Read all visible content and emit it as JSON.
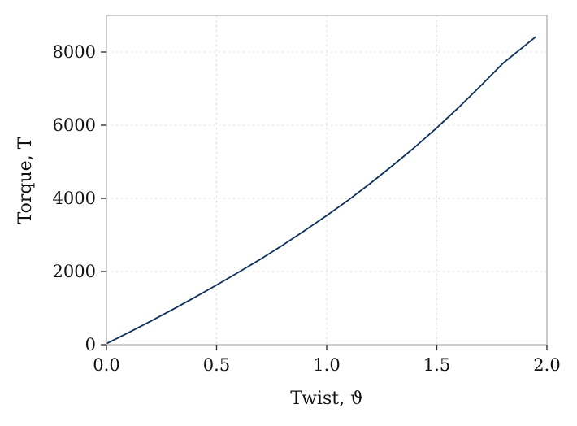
{
  "chart_data": {
    "type": "line",
    "title": "",
    "xlabel": "Twist, ϑ",
    "ylabel": "Torque, T",
    "xlim": [
      0,
      2.0
    ],
    "ylim": [
      0,
      9000
    ],
    "xticks": [
      0.0,
      0.5,
      1.0,
      1.5,
      2.0
    ],
    "xtick_labels": [
      "0.0",
      "0.5",
      "1.0",
      "1.5",
      "2.0"
    ],
    "yticks": [
      0,
      2000,
      4000,
      6000,
      8000
    ],
    "ytick_labels": [
      "0",
      "2000",
      "4000",
      "6000",
      "8000"
    ],
    "grid": true,
    "line_color": "#0b2f5b",
    "series": [
      {
        "x": [
          0.0,
          0.1,
          0.2,
          0.3,
          0.4,
          0.5,
          0.6,
          0.7,
          0.8,
          0.9,
          1.0,
          1.1,
          1.2,
          1.3,
          1.4,
          1.5,
          1.6,
          1.7,
          1.8,
          1.95
        ],
        "y": [
          30,
          330,
          640,
          960,
          1290,
          1630,
          1980,
          2340,
          2720,
          3120,
          3530,
          3960,
          4420,
          4900,
          5400,
          5930,
          6490,
          7080,
          7690,
          8420
        ]
      }
    ]
  }
}
